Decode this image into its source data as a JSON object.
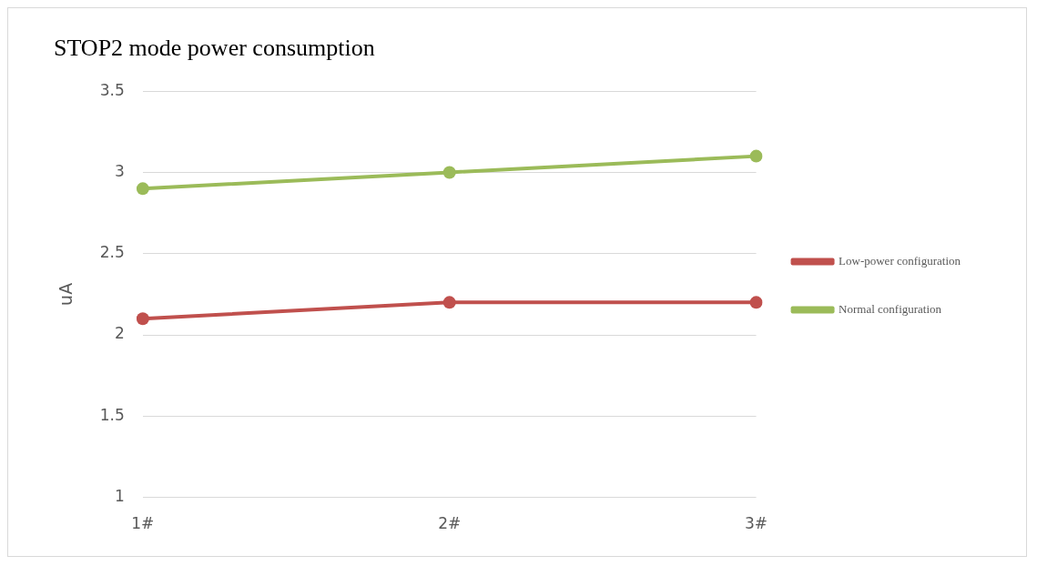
{
  "chart_data": {
    "type": "line",
    "title": "STOP2 mode power consumption",
    "ylabel": "uA",
    "categories": [
      "1#",
      "2#",
      "3#"
    ],
    "series": [
      {
        "name": "Low-power configuration",
        "color": "#c0504d",
        "values": [
          2.1,
          2.2,
          2.2
        ]
      },
      {
        "name": "Normal configuration",
        "color": "#9bbb59",
        "values": [
          2.9,
          3.0,
          3.1
        ]
      }
    ],
    "ylim": [
      1,
      3.5
    ],
    "yticks": [
      1,
      1.5,
      2,
      2.5,
      3,
      3.5
    ],
    "grid": "y",
    "legend": "right",
    "marker": "circle",
    "line_style": "solid"
  }
}
